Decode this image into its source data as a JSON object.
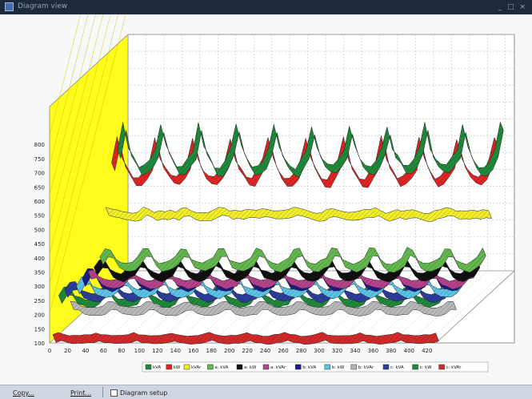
{
  "window": {
    "title": "Diagram view",
    "controls": "_ □ ×"
  },
  "toolbar": {
    "copy_label": "Copy...",
    "print_label": "Print...",
    "diagram_setup_label": "Diagram setup",
    "diagram_setup_checked": false
  },
  "colors": {
    "floor": "#ffffff",
    "wall": "#ffffff",
    "side_wall": "#fffb1a",
    "grid": "#b9b9b9",
    "background": "#f7f8fa"
  },
  "chart_data": {
    "type": "3d-ribbon-line",
    "title": "",
    "xlabel": "",
    "ylabel": "",
    "xlim": [
      0,
      430
    ],
    "ylim": [
      100,
      850
    ],
    "x_ticks": [
      0,
      20,
      40,
      60,
      80,
      100,
      120,
      140,
      160,
      180,
      200,
      220,
      240,
      260,
      280,
      300,
      320,
      340,
      360,
      380,
      400,
      420
    ],
    "y_ticks": [
      100,
      150,
      200,
      250,
      300,
      350,
      400,
      450,
      500,
      550,
      600,
      650,
      700,
      750,
      800
    ],
    "grid": true,
    "legend_position": "bottom",
    "series": [
      {
        "name": "kVA",
        "color": "#1f8a3b",
        "pattern": "periodic",
        "base": 760,
        "amp": 85,
        "period": 42,
        "phase": 4,
        "noise": 18
      },
      {
        "name": "kW",
        "color": "#e02525",
        "pattern": "periodic",
        "base": 720,
        "amp": 80,
        "period": 42,
        "phase": 4,
        "noise": 16
      },
      {
        "name": "kVAr",
        "color": "#f2ee2a",
        "pattern": "flat",
        "base": 565,
        "amp": 6,
        "period": 42,
        "phase": 9,
        "noise": 14
      },
      {
        "name": "a: kVA",
        "color": "#63b84e",
        "pattern": "periodic",
        "base": 395,
        "amp": 30,
        "period": 42,
        "phase": 3,
        "noise": 8
      },
      {
        "name": "a: kW",
        "color": "#101010",
        "pattern": "periodic",
        "base": 360,
        "amp": 28,
        "period": 42,
        "phase": 3,
        "noise": 8
      },
      {
        "name": "a: kVAr",
        "color": "#b5428a",
        "pattern": "periodic",
        "base": 330,
        "amp": 20,
        "period": 42,
        "phase": 6,
        "noise": 6
      },
      {
        "name": "b: kVA",
        "color": "#1b1b8a",
        "pattern": "periodic",
        "base": 325,
        "amp": 28,
        "period": 42,
        "phase": 2,
        "noise": 8
      },
      {
        "name": "b: kW",
        "color": "#5cc4e6",
        "pattern": "periodic",
        "base": 300,
        "amp": 26,
        "period": 42,
        "phase": 2,
        "noise": 8
      },
      {
        "name": "b: kVAr",
        "color": "#b9b9b9",
        "pattern": "periodic",
        "base": 230,
        "amp": 12,
        "period": 42,
        "phase": 7,
        "noise": 5
      },
      {
        "name": "c: kVA",
        "color": "#2c3e9c",
        "pattern": "periodic",
        "base": 285,
        "amp": 26,
        "period": 42,
        "phase": 1,
        "noise": 8
      },
      {
        "name": "c: kW",
        "color": "#1f8a3b",
        "pattern": "periodic",
        "base": 265,
        "amp": 24,
        "period": 42,
        "phase": 1,
        "noise": 8
      },
      {
        "name": "c: kVAr",
        "color": "#d22a2a",
        "pattern": "flat",
        "base": 128,
        "amp": 6,
        "period": 42,
        "phase": 5,
        "noise": 4
      }
    ]
  }
}
